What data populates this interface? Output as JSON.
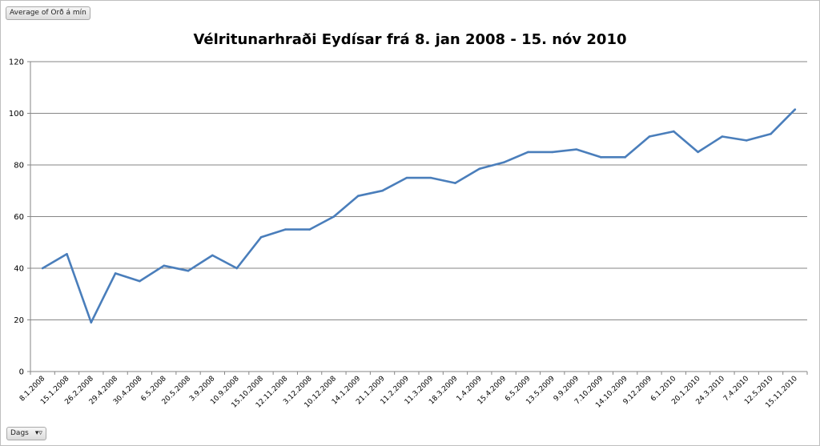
{
  "value_field_label": "Average of Orð á mín",
  "axis_field_label": "Dags",
  "axis_field_filter_icon": "filter-icon",
  "chart_data": {
    "type": "line",
    "title": "Vélritunarhraði Eydísar frá 8. jan 2008 - 15. nóv 2010",
    "xlabel": "",
    "ylabel": "",
    "ylim": [
      0,
      120
    ],
    "yticks": [
      0,
      20,
      40,
      60,
      80,
      100,
      120
    ],
    "grid": true,
    "legend": "none",
    "line_color": "#4a7ebb",
    "categories": [
      "8.1.2008",
      "15.1.2008",
      "26.2.2008",
      "29.4.2008",
      "30.4.2008",
      "6.5.2008",
      "20.5.2008",
      "3.9.2008",
      "10.9.2008",
      "15.10.2008",
      "12.11.2008",
      "3.12.2008",
      "10.12.2008",
      "14.1.2009",
      "21.1.2009",
      "11.2.2009",
      "11.3.2009",
      "18.3.2009",
      "1.4.2009",
      "15.4.2009",
      "6.5.2009",
      "13.5.2009",
      "9.9.2009",
      "7.10.2009",
      "14.10.2009",
      "9.12.2009",
      "6.1.2010",
      "20.1.2010",
      "24.3.2010",
      "7.4.2010",
      "12.5.2010",
      "15.11.2010"
    ],
    "series": [
      {
        "values": [
          40,
          45.5,
          19,
          38,
          35,
          41,
          39,
          45,
          40,
          52,
          55,
          55,
          60,
          68,
          70,
          75,
          75,
          73,
          78.5,
          81,
          85,
          85,
          86,
          83,
          83,
          91,
          93,
          85,
          91,
          89.5,
          92,
          101.5
        ]
      }
    ]
  }
}
